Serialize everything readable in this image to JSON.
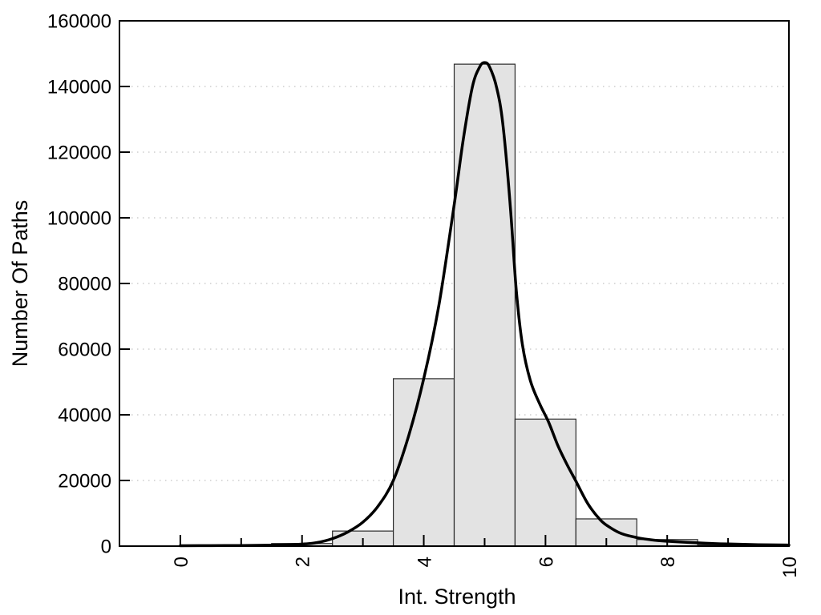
{
  "chart_data": {
    "type": "histogram",
    "xlabel": "Int. Strength",
    "ylabel": "Number Of Paths",
    "xlim": [
      -1,
      10
    ],
    "ylim": [
      0,
      160000
    ],
    "x_major_ticks": [
      0,
      2,
      4,
      6,
      8,
      10
    ],
    "x_major_tick_labels": [
      "0",
      "2",
      "4",
      "6",
      "8",
      "10"
    ],
    "x_minor_ticks": [
      1,
      3,
      5,
      7,
      9
    ],
    "y_ticks": [
      0,
      20000,
      40000,
      60000,
      80000,
      100000,
      120000,
      140000,
      160000
    ],
    "y_tick_labels": [
      "0",
      "20000",
      "40000",
      "60000",
      "80000",
      "100000",
      "120000",
      "140000",
      "160000"
    ],
    "gridline_values": [
      20000,
      40000,
      60000,
      80000,
      100000,
      120000,
      140000
    ],
    "grid_style": "horizontal-dotted",
    "bars": {
      "bin_width": 1,
      "centers": [
        2,
        3,
        4,
        5,
        6,
        7,
        8,
        9
      ],
      "values": [
        800,
        4600,
        51000,
        146800,
        38700,
        8300,
        2000,
        400
      ]
    },
    "fit_curve": {
      "points": [
        [
          0,
          120
        ],
        [
          0.5,
          150
        ],
        [
          1,
          200
        ],
        [
          1.5,
          300
        ],
        [
          2,
          600
        ],
        [
          2.25,
          1100
        ],
        [
          2.5,
          2300
        ],
        [
          2.75,
          4300
        ],
        [
          3,
          7300
        ],
        [
          3.25,
          12200
        ],
        [
          3.5,
          20000
        ],
        [
          3.75,
          33500
        ],
        [
          4,
          51000
        ],
        [
          4.25,
          73500
        ],
        [
          4.5,
          104000
        ],
        [
          4.65,
          124000
        ],
        [
          4.8,
          140000
        ],
        [
          4.92,
          146000
        ],
        [
          5,
          147300
        ],
        [
          5.08,
          146000
        ],
        [
          5.2,
          139500
        ],
        [
          5.3,
          128500
        ],
        [
          5.42,
          104000
        ],
        [
          5.52,
          78000
        ],
        [
          5.62,
          61500
        ],
        [
          5.75,
          50500
        ],
        [
          5.9,
          43500
        ],
        [
          6.05,
          37800
        ],
        [
          6.2,
          30800
        ],
        [
          6.35,
          25000
        ],
        [
          6.5,
          19800
        ],
        [
          6.7,
          12800
        ],
        [
          6.9,
          8000
        ],
        [
          7.05,
          5800
        ],
        [
          7.25,
          3800
        ],
        [
          7.5,
          2600
        ],
        [
          7.75,
          1900
        ],
        [
          8,
          1500
        ],
        [
          8.5,
          1000
        ],
        [
          9,
          650
        ],
        [
          9.5,
          450
        ],
        [
          10,
          350
        ]
      ]
    },
    "colors": {
      "background": "#ffffff",
      "bar_fill": "#e3e3e3",
      "bar_edge": "#2b2b2b",
      "curve": "#000000",
      "grid": "#c4c4c4",
      "axis": "#000000",
      "text": "#000000"
    }
  }
}
